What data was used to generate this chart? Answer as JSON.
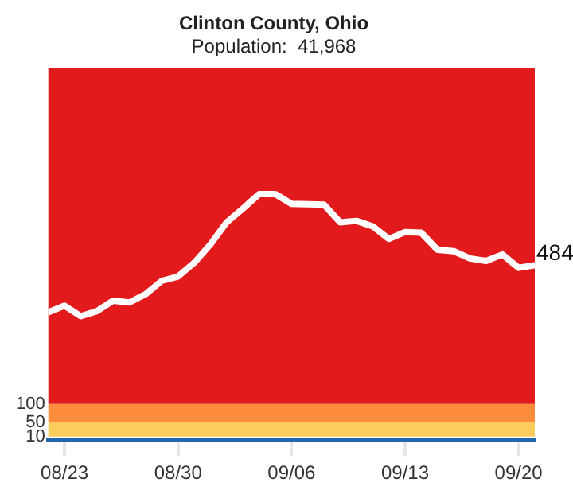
{
  "chart_data": {
    "type": "line",
    "title": "Clinton County, Ohio",
    "subtitle": "Population:  41,968",
    "x": [
      "--08-22",
      "--08-23",
      "--08-24",
      "--08-25",
      "--08-26",
      "--08-27",
      "--08-28",
      "--08-29",
      "--08-30",
      "--08-31",
      "--09-01",
      "--09-02",
      "--09-03",
      "--09-04",
      "--09-05",
      "--09-06",
      "--09-07",
      "--09-08",
      "--09-09",
      "--09-10",
      "--09-11",
      "--09-12",
      "--09-13",
      "--09-14",
      "--09-15",
      "--09-16",
      "--09-17",
      "--09-18",
      "--09-19",
      "--09-20",
      "--09-21"
    ],
    "series": [
      {
        "color": "#ffffff",
        "values": [
          354,
          372,
          343,
          357,
          386,
          381,
          404,
          441,
          453,
          491,
          542,
          603,
          641,
          681,
          681,
          654,
          653,
          652,
          603,
          607,
          592,
          557,
          576,
          574,
          527,
          523,
          503,
          496,
          514,
          477,
          484
        ],
        "value_labels": [
          null,
          null,
          null,
          null,
          null,
          null,
          null,
          null,
          null,
          null,
          null,
          null,
          null,
          null,
          null,
          null,
          null,
          null,
          null,
          null,
          null,
          null,
          null,
          null,
          null,
          null,
          null,
          null,
          null,
          null,
          "484"
        ]
      }
    ],
    "xlim": [
      "--08-22",
      "--09-21"
    ],
    "xticks": [
      {
        "value": "--08-23",
        "label": "08/23"
      },
      {
        "value": "--08-30",
        "label": "08/30"
      },
      {
        "value": "--09-06",
        "label": "09/06"
      },
      {
        "value": "--09-13",
        "label": "09/13"
      },
      {
        "value": "--09-20",
        "label": "09/20"
      }
    ],
    "ylim": [
      0,
      1030
    ],
    "yticks": [
      10,
      50,
      100
    ],
    "bands": [
      {
        "axis": "y",
        "from": 10,
        "to": 50,
        "color": "#fecc5c"
      },
      {
        "axis": "y",
        "from": 50,
        "to": 100,
        "color": "#fd8d3c"
      },
      {
        "axis": "y",
        "from": 100,
        "to": 1030,
        "color": "#e31a1c"
      }
    ],
    "grid": false,
    "legend": false,
    "marker": "none",
    "line_style": "solid"
  }
}
